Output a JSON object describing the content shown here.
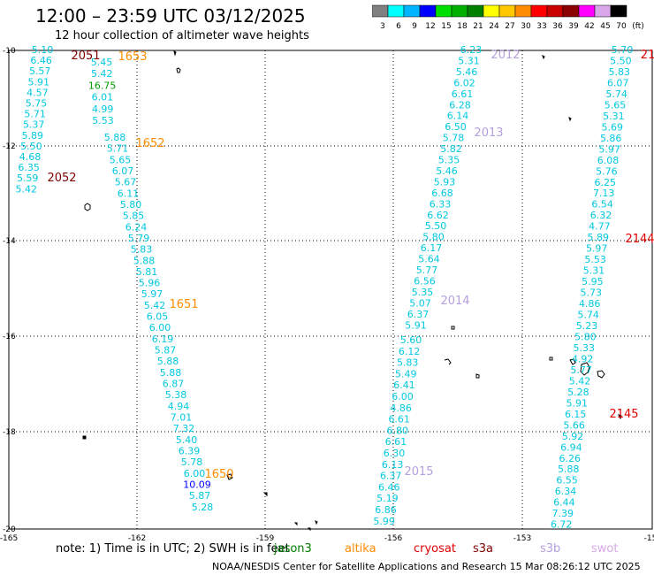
{
  "header": {
    "title": "12:00 – 23:59 UTC 03/12/2025",
    "subtitle": "12 hour collection of altimeter wave heights"
  },
  "legend": {
    "unit": "(ft)",
    "bins": [
      {
        "label": "3",
        "color": "#808080"
      },
      {
        "label": "6",
        "color": "#00ffff"
      },
      {
        "label": "9",
        "color": "#00b4ff"
      },
      {
        "label": "12",
        "color": "#0000ff"
      },
      {
        "label": "15",
        "color": "#00e000"
      },
      {
        "label": "18",
        "color": "#00b000"
      },
      {
        "label": "21",
        "color": "#008000"
      },
      {
        "label": "24",
        "color": "#ffff00"
      },
      {
        "label": "27",
        "color": "#ffc800"
      },
      {
        "label": "30",
        "color": "#ff8c00"
      },
      {
        "label": "33",
        "color": "#ff0000"
      },
      {
        "label": "36",
        "color": "#c80000"
      },
      {
        "label": "39",
        "color": "#8b0000"
      },
      {
        "label": "42",
        "color": "#ff00ff"
      },
      {
        "label": "45",
        "color": "#d8a8e8"
      },
      {
        "label": "70",
        "color": "#000000"
      }
    ]
  },
  "axes": {
    "lon_ticks": [
      "-165",
      "-162",
      "-159",
      "-156",
      "-153",
      "-15"
    ],
    "lat_ticks": [
      "-10",
      "-12",
      "-14",
      "-16",
      "-18",
      "-20"
    ]
  },
  "passes": [
    {
      "label": "2051",
      "color": "#800000"
    },
    {
      "label": "2052",
      "color": "#800000"
    },
    {
      "label": "1653",
      "color": "#ff8c00"
    },
    {
      "label": "1652",
      "color": "#ff8c00"
    },
    {
      "label": "1651",
      "color": "#ff8c00"
    },
    {
      "label": "1650",
      "color": "#ff8c00"
    },
    {
      "label": "2012",
      "color": "#b4a0dc"
    },
    {
      "label": "2013",
      "color": "#b4a0dc"
    },
    {
      "label": "2014",
      "color": "#b4a0dc"
    },
    {
      "label": "2015",
      "color": "#b4a0dc"
    },
    {
      "label": "2144",
      "color": "#e00000"
    },
    {
      "label": "2145",
      "color": "#e00000"
    },
    {
      "label": "21",
      "color": "#e00000"
    }
  ],
  "tracks": {
    "a": [
      "5.10",
      "6.46",
      "5.57",
      "5.91",
      "4.57",
      "5.75",
      "5.71",
      "5.37",
      "5.89",
      "5.50",
      "4.68",
      "6.35",
      "5.59",
      "5.42"
    ],
    "b": [
      "5.45",
      "5.42",
      "16.75",
      "6.01",
      "4.99",
      "5.53"
    ],
    "c": [
      "5.88",
      "5.71",
      "5.65",
      "6.07",
      "5.67",
      "6.11",
      "5.80",
      "5.85",
      "6.24",
      "5.79",
      "5.83",
      "5.88",
      "5.81",
      "5.96",
      "5.97",
      "5.42",
      "6.05",
      "6.00",
      "6.19",
      "5.87",
      "5.88",
      "5.88",
      "6.87",
      "5.38",
      "4.94",
      "7.01",
      "7.32",
      "5.40",
      "6.39",
      "5.78",
      "6.00",
      "10.09",
      "5.87",
      "5.28"
    ],
    "d": [
      "6.23",
      "5.31",
      "5.46",
      "6.02",
      "6.61",
      "6.28",
      "6.14",
      "6.50",
      "5.78",
      "5.82",
      "5.35",
      "5.46",
      "5.93",
      "6.68",
      "6.33",
      "6.62",
      "5.50",
      "5.80",
      "6.17",
      "5.64",
      "5.77",
      "6.56",
      "5.35",
      "5.07",
      "6.37",
      "5.91"
    ],
    "e": [
      "5.60",
      "6.12",
      "5.83",
      "5.49",
      "6.41",
      "6.00",
      "4.86",
      "6.61",
      "6.80",
      "6.61",
      "6.30",
      "6.13",
      "6.37",
      "6.46",
      "5.19",
      "6.86",
      "5.99"
    ],
    "f": [
      "5.70",
      "5.50",
      "5.83",
      "6.07",
      "5.74",
      "5.65",
      "5.31",
      "5.69",
      "5.86",
      "5.97",
      "6.08",
      "5.76",
      "6.25",
      "7.13",
      "6.54",
      "6.32",
      "4.77",
      "5.89",
      "5.97",
      "5.53",
      "5.31",
      "5.95",
      "5.73",
      "4.86",
      "5.74",
      "5.23",
      "5.80",
      "5.33",
      "4.92",
      "5.77",
      "5.42",
      "5.28",
      "5.91",
      "6.15",
      "5.66",
      "5.92",
      "6.94",
      "6.26",
      "5.88",
      "6.55",
      "6.34",
      "6.44",
      "7.39",
      "6.72"
    ]
  },
  "footer": {
    "note": "note:  1) Time is in UTC; 2) SWH is in feet",
    "satellites": [
      {
        "name": "jason3",
        "color": "#008000"
      },
      {
        "name": "altika",
        "color": "#ff8c00"
      },
      {
        "name": "cryosat",
        "color": "#e00000"
      },
      {
        "name": "s3a",
        "color": "#800000"
      },
      {
        "name": "s3b",
        "color": "#b4a0dc"
      },
      {
        "name": "swot",
        "color": "#d8a8e8"
      }
    ],
    "credit": "NOAA/NESDIS Center for Satellite Applications and Research    15 Mar 08:26:12 UTC 2025"
  }
}
